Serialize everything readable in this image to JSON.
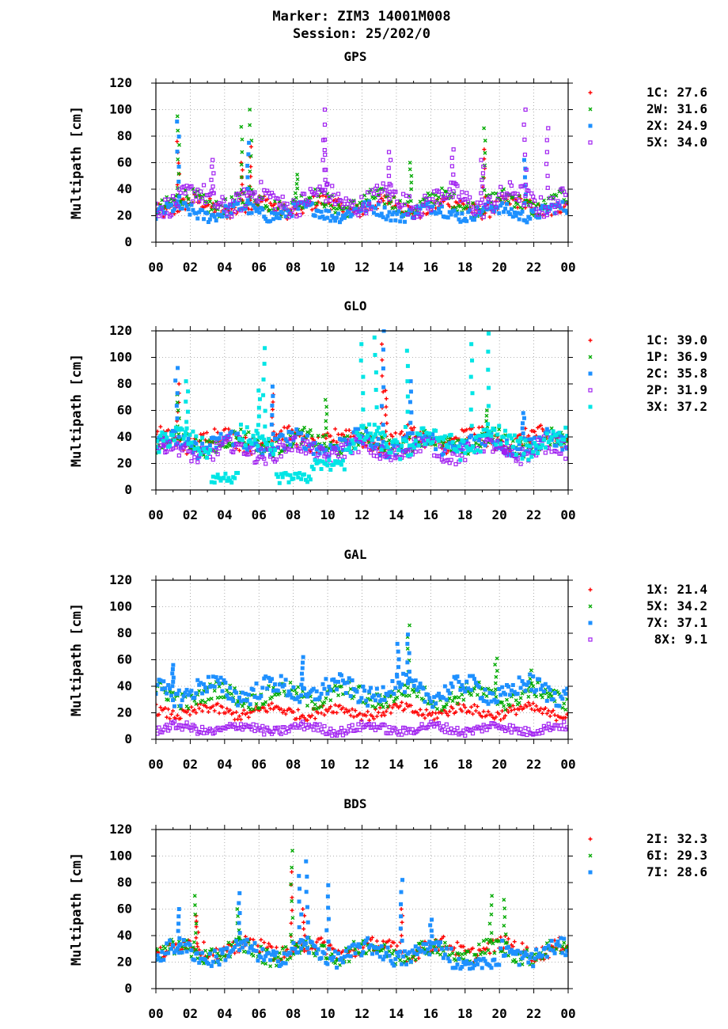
{
  "title_line1": "Marker: ZIM3 14001M008",
  "title_line2": "Session: 25/202/0",
  "x_ticks": [
    "00",
    "02",
    "04",
    "06",
    "08",
    "10",
    "12",
    "14",
    "16",
    "18",
    "20",
    "22",
    "00"
  ],
  "colors": {
    "red": "#ff0000",
    "green": "#00aa00",
    "blue": "#1e90ff",
    "purple": "#a020f0",
    "cyan": "#00e5e5"
  },
  "chart_data": [
    {
      "type": "scatter",
      "title": "GPS",
      "ylabel": "Multipath [cm]",
      "ylim": [
        0,
        120
      ],
      "xlim": [
        0,
        24
      ],
      "yticks": [
        "0",
        "20",
        "40",
        "60",
        "80",
        "100",
        "120"
      ],
      "grid": true,
      "legend_position": "right",
      "series": [
        {
          "name": "1C",
          "value": "27.6",
          "marker": "plus",
          "color": "#ff0000",
          "base": 27,
          "amp": 7,
          "spikes": [
            [
              1.3,
              76
            ],
            [
              5.0,
              60
            ],
            [
              5.5,
              72
            ],
            [
              19.1,
              70
            ]
          ]
        },
        {
          "name": "2W",
          "value": "31.6",
          "marker": "cross",
          "color": "#00aa00",
          "base": 30,
          "amp": 8,
          "spikes": [
            [
              1.3,
              95
            ],
            [
              5.0,
              87
            ],
            [
              5.5,
              100
            ],
            [
              8.2,
              51
            ],
            [
              19.1,
              86
            ],
            [
              14.8,
              60
            ]
          ]
        },
        {
          "name": "2X",
          "value": "24.9",
          "marker": "square",
          "color": "#1e90ff",
          "base": 23,
          "amp": 6,
          "spikes": [
            [
              1.3,
              91
            ],
            [
              5.4,
              75
            ],
            [
              21.5,
              62
            ]
          ]
        },
        {
          "name": "5X",
          "value": "34.0",
          "marker": "opensquare",
          "color": "#a020f0",
          "base": 32,
          "amp": 10,
          "spikes": [
            [
              9.9,
              100
            ],
            [
              9.8,
              77
            ],
            [
              21.5,
              100
            ],
            [
              22.8,
              86
            ],
            [
              13.6,
              68
            ],
            [
              17.3,
              70
            ],
            [
              19.0,
              62
            ],
            [
              3.3,
              62
            ]
          ]
        }
      ]
    },
    {
      "type": "scatter",
      "title": "GLO",
      "ylabel": "Multipath [cm]",
      "ylim": [
        0,
        120
      ],
      "xlim": [
        0,
        24
      ],
      "yticks": [
        "0",
        "20",
        "40",
        "60",
        "80",
        "100",
        "120"
      ],
      "grid": true,
      "legend_position": "right",
      "series": [
        {
          "name": "1C",
          "value": "39.0",
          "marker": "plus",
          "color": "#ff0000",
          "base": 38,
          "amp": 8,
          "spikes": [
            [
              1.3,
              80
            ],
            [
              13.2,
              110
            ],
            [
              6.8,
              72
            ],
            [
              13.4,
              75
            ]
          ]
        },
        {
          "name": "1P",
          "value": "36.9",
          "marker": "cross",
          "color": "#00aa00",
          "base": 36,
          "amp": 8,
          "spikes": [
            [
              1.3,
              72
            ],
            [
              9.9,
              68
            ],
            [
              19.3,
              60
            ]
          ]
        },
        {
          "name": "2C",
          "value": "35.8",
          "marker": "square",
          "color": "#1e90ff",
          "base": 35,
          "amp": 8,
          "spikes": [
            [
              1.2,
              92
            ],
            [
              13.2,
              120
            ],
            [
              14.8,
              82
            ],
            [
              6.8,
              78
            ],
            [
              21.4,
              58
            ]
          ]
        },
        {
          "name": "2P",
          "value": "31.9",
          "marker": "opensquare",
          "color": "#a020f0",
          "base": 30,
          "amp": 8,
          "spikes": [
            [
              0.5,
              40
            ],
            [
              20.3,
              28
            ]
          ]
        },
        {
          "name": "3X",
          "value": "37.2",
          "marker": "square",
          "color": "#00e5e5",
          "base": 36,
          "amp": 10,
          "spikes": [
            [
              1.8,
              82
            ],
            [
              6.3,
              107
            ],
            [
              12.0,
              110
            ],
            [
              12.8,
              115
            ],
            [
              14.6,
              105
            ],
            [
              18.4,
              110
            ],
            [
              19.3,
              118
            ],
            [
              6.0,
              75
            ]
          ],
          "dips": [
            [
              3.2,
              4.8,
              5
            ],
            [
              7.0,
              9.0,
              5
            ],
            [
              9.0,
              11.0,
              15
            ]
          ]
        }
      ]
    },
    {
      "type": "scatter",
      "title": "GAL",
      "ylabel": "Multipath [cm]",
      "ylim": [
        0,
        120
      ],
      "xlim": [
        0,
        24
      ],
      "yticks": [
        "0",
        "20",
        "40",
        "60",
        "80",
        "100",
        "120"
      ],
      "grid": true,
      "legend_position": "right",
      "series": [
        {
          "name": "1X",
          "value": "21.4",
          "marker": "plus",
          "color": "#ff0000",
          "base": 21,
          "amp": 5,
          "spikes": []
        },
        {
          "name": "5X",
          "value": "34.2",
          "marker": "cross",
          "color": "#00aa00",
          "base": 33,
          "amp": 8,
          "spikes": [
            [
              14.7,
              86
            ],
            [
              19.8,
              61
            ],
            [
              21.8,
              52
            ]
          ]
        },
        {
          "name": "7X",
          "value": "37.1",
          "marker": "square",
          "color": "#1e90ff",
          "base": 37,
          "amp": 9,
          "spikes": [
            [
              14.7,
              79
            ],
            [
              14.1,
              72
            ],
            [
              8.5,
              62
            ],
            [
              1.0,
              56
            ]
          ]
        },
        {
          "name": "8X",
          "value": "9.1",
          "marker": "opensquare",
          "color": "#a020f0",
          "base": 8,
          "amp": 4,
          "spikes": []
        }
      ]
    },
    {
      "type": "scatter",
      "title": "BDS",
      "ylabel": "Multipath [cm]",
      "ylim": [
        0,
        120
      ],
      "xlim": [
        0,
        24
      ],
      "yticks": [
        "0",
        "20",
        "40",
        "60",
        "80",
        "100",
        "120"
      ],
      "grid": true,
      "legend_position": "right",
      "series": [
        {
          "name": "2I",
          "value": "32.3",
          "marker": "plus",
          "color": "#ff0000",
          "base": 30,
          "amp": 7,
          "spikes": [
            [
              7.9,
              88
            ],
            [
              14.3,
              60
            ],
            [
              2.4,
              55
            ],
            [
              8.6,
              60
            ]
          ]
        },
        {
          "name": "6I",
          "value": "29.3",
          "marker": "cross",
          "color": "#00aa00",
          "base": 28,
          "amp": 8,
          "spikes": [
            [
              7.9,
              104
            ],
            [
              2.3,
              70
            ],
            [
              19.5,
              70
            ],
            [
              20.3,
              67
            ],
            [
              4.8,
              60
            ]
          ]
        },
        {
          "name": "7I",
          "value": "28.6",
          "marker": "square",
          "color": "#1e90ff",
          "base": 27,
          "amp": 8,
          "spikes": [
            [
              8.8,
              96
            ],
            [
              8.4,
              85
            ],
            [
              14.3,
              82
            ],
            [
              10.0,
              78
            ],
            [
              4.9,
              72
            ],
            [
              1.3,
              60
            ],
            [
              16.0,
              52
            ]
          ],
          "dips": [
            [
              17.2,
              20.0,
              15
            ]
          ]
        }
      ]
    }
  ]
}
